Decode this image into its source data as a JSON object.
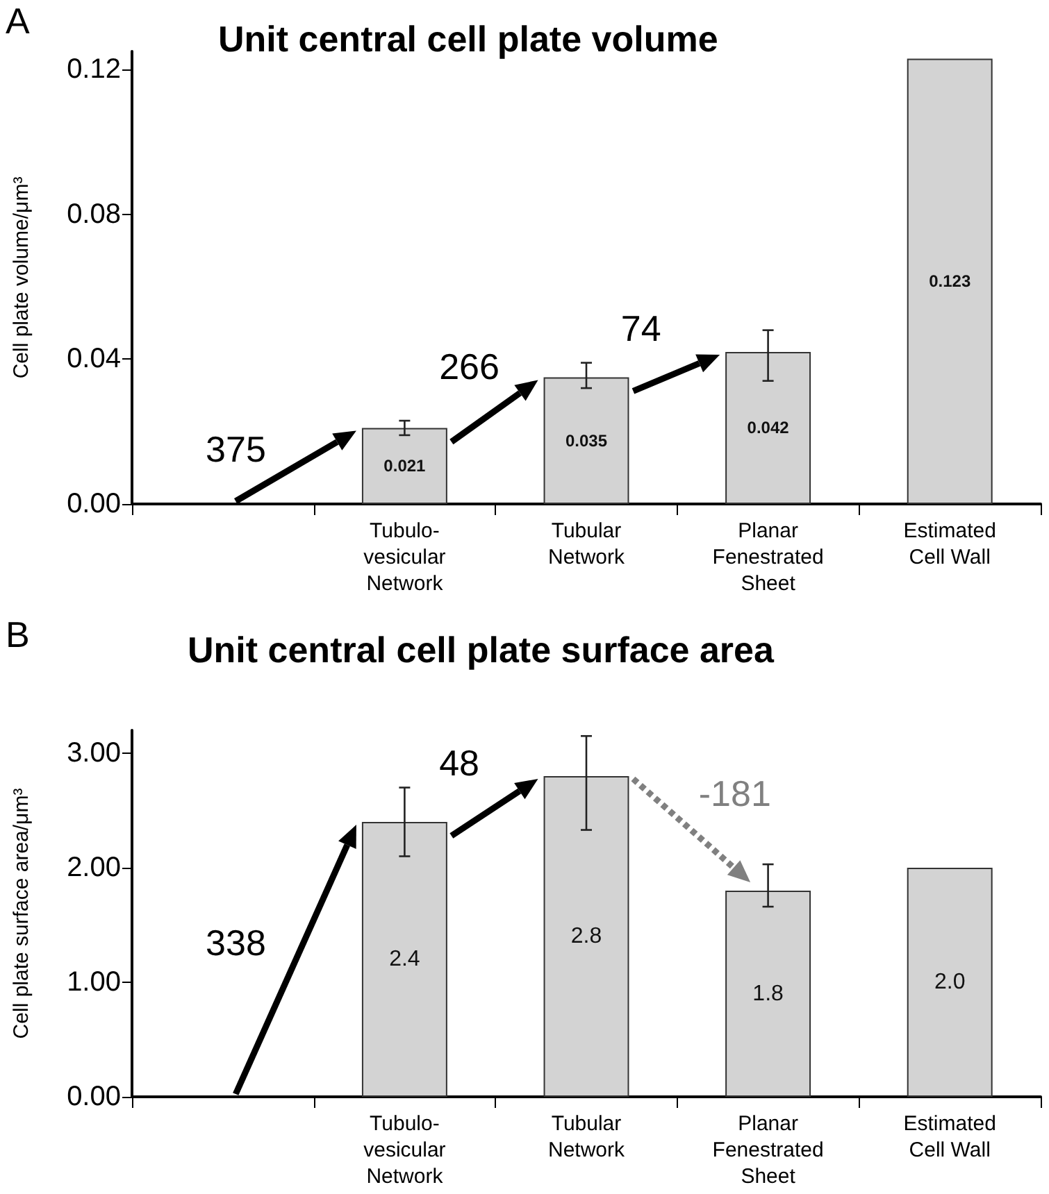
{
  "chart_data": [
    {
      "type": "bar",
      "title": "Unit central cell plate volume",
      "ylabel": "Cell plate volume/μm³",
      "categories": [
        null,
        "Tubulo-\nvesicular\nNetwork",
        "Tubular\nNetwork",
        "Planar\nFenestrated\nSheet",
        "Estimated\nCell Wall"
      ],
      "values": [
        null,
        0.021,
        0.035,
        0.042,
        0.123
      ],
      "color": "#d3d3d3",
      "errors": [
        null,
        [
          0.019,
          0.023
        ],
        [
          0.032,
          0.039
        ],
        [
          0.034,
          0.048
        ],
        null
      ],
      "value_labels": [
        null,
        "0.021",
        "0.035",
        "0.042",
        "0.123"
      ],
      "ylim": [
        0,
        0.125
      ],
      "yticks": [
        {
          "value": 0,
          "label": "0.00"
        },
        0.04,
        0.08,
        0.12
      ],
      "annotations": [
        "A",
        "375",
        {
          "text": "266",
          "x": "Tubular\nNetwork",
          "y": 0.035
        },
        {
          "text": "74",
          "x": "Planar\nFenestrated\nSheet",
          "y": 0.042
        }
      ]
    },
    {
      "type": "bar",
      "title": "Unit central cell plate surface area",
      "ylabel": "Cell plate surface area/μm³",
      "categories": [
        null,
        "Tubulo-\nvesicular\nNetwork",
        "Tubular\nNetwork",
        "Planar\nFenestrated\nSheet",
        "Estimated\nCell Wall"
      ],
      "values": [
        null,
        2.4,
        2.8,
        1.8,
        2.0
      ],
      "color": "#d3d3d3",
      "errors": [
        null,
        [
          2.1,
          2.7
        ],
        [
          2.33,
          3.15
        ],
        [
          1.66,
          2.03
        ],
        null
      ],
      "value_labels": [
        null,
        "2.4",
        "2.8",
        "1.8",
        "2.0"
      ],
      "ylim": [
        0,
        3.2
      ],
      "yticks": [
        {
          "value": 0,
          "label": "0.00"
        },
        {
          "value": 1,
          "label": "1.00"
        },
        {
          "value": 2,
          "label": "2.00"
        },
        {
          "value": 3,
          "label": "3.00"
        }
      ],
      "annotations": [
        "B",
        "338",
        {
          "text": "48",
          "x": "Tubular\nNetwork",
          "y": 2.8
        },
        {
          "text": "-181",
          "x": "Planar\nFenestrated\nSheet",
          "y": 1.8
        }
      ]
    }
  ]
}
